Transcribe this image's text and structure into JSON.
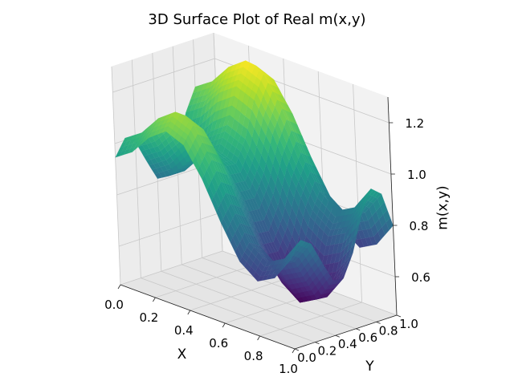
{
  "chart_data": {
    "type": "surface3d",
    "title": "3D Surface Plot of Real m(x,y)",
    "xlabel": "X",
    "ylabel": "Y",
    "zlabel": "m(x,y)",
    "xlim": [
      0,
      1
    ],
    "ylim": [
      0,
      1
    ],
    "zlim": [
      0.45,
      1.3
    ],
    "x_ticks": [
      "0.0",
      "0.2",
      "0.4",
      "0.6",
      "0.8",
      "1.0"
    ],
    "y_ticks": [
      "0.0",
      "0.2",
      "0.4",
      "0.6",
      "0.8",
      "1.0"
    ],
    "z_ticks": [
      "0.6",
      "0.8",
      "1.0",
      "1.2"
    ],
    "grid": true,
    "colormap": "viridis",
    "colormap_stops": [
      "#440154",
      "#482878",
      "#3e4989",
      "#31688e",
      "#26828e",
      "#1f9e89",
      "#35b779",
      "#6ece58",
      "#b5de2b",
      "#fde725"
    ],
    "x": [
      0,
      0.1,
      0.2,
      0.3,
      0.4,
      0.5,
      0.6,
      0.7,
      0.8,
      0.9,
      1.0
    ],
    "y": [
      0,
      0.1,
      0.2,
      0.3,
      0.4,
      0.5,
      0.6,
      0.7,
      0.8,
      0.9,
      1.0
    ],
    "z": [
      [
        0.946,
        1.008,
        0.98,
        0.893,
        0.811,
        0.807,
        0.892,
        1.029,
        1.116,
        1.083,
        0.946
      ],
      [
        0.992,
        1.054,
        1.026,
        0.939,
        0.857,
        0.853,
        0.938,
        1.075,
        1.162,
        1.129,
        0.992
      ],
      [
        1.073,
        1.135,
        1.107,
        1.02,
        0.938,
        0.934,
        1.019,
        1.156,
        1.243,
        1.21,
        1.073
      ],
      [
        1.123,
        1.185,
        1.157,
        1.07,
        0.988,
        0.984,
        1.069,
        1.206,
        1.293,
        1.26,
        1.123
      ],
      [
        1.094,
        1.156,
        1.128,
        1.041,
        0.959,
        0.955,
        1.04,
        1.177,
        1.264,
        1.231,
        1.094
      ],
      [
        0.986,
        1.048,
        1.02,
        0.933,
        0.851,
        0.847,
        0.932,
        1.069,
        1.156,
        1.123,
        0.986
      ],
      [
        0.84,
        0.902,
        0.874,
        0.787,
        0.705,
        0.701,
        0.786,
        0.923,
        1.01,
        0.977,
        0.84
      ],
      [
        0.715,
        0.777,
        0.749,
        0.662,
        0.58,
        0.576,
        0.661,
        0.798,
        0.885,
        0.852,
        0.715
      ],
      [
        0.663,
        0.725,
        0.697,
        0.61,
        0.528,
        0.524,
        0.609,
        0.746,
        0.833,
        0.8,
        0.663
      ],
      [
        0.701,
        0.763,
        0.735,
        0.648,
        0.566,
        0.562,
        0.647,
        0.784,
        0.871,
        0.838,
        0.701
      ],
      [
        0.799,
        0.861,
        0.833,
        0.746,
        0.664,
        0.66,
        0.745,
        0.882,
        0.969,
        0.936,
        0.799
      ]
    ]
  }
}
